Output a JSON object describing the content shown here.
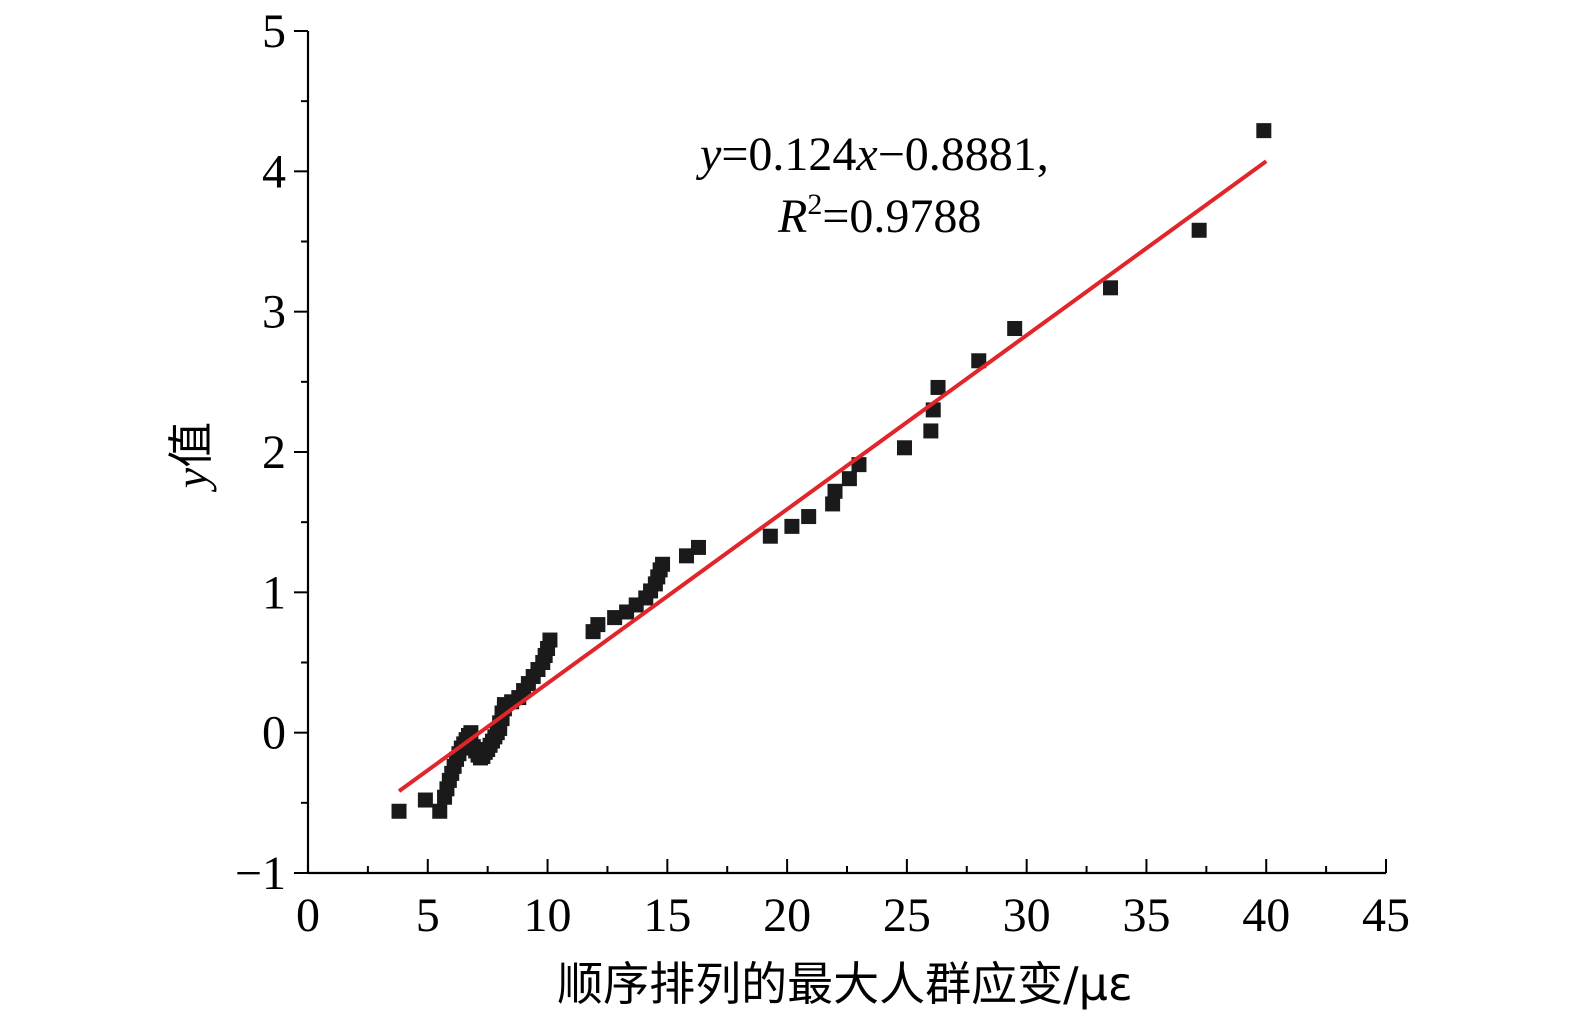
{
  "chart_data": {
    "type": "scatter",
    "xlabel": "顺序排列的最大人群应变/με",
    "ylabel_var": "y",
    "ylabel_text": "值",
    "xlim": [
      0,
      45
    ],
    "ylim": [
      -1,
      5
    ],
    "xticks": [
      0,
      5,
      10,
      15,
      20,
      25,
      30,
      35,
      40,
      45
    ],
    "xtick_labels": [
      "0",
      "5",
      "10",
      "15",
      "20",
      "25",
      "30",
      "35",
      "40",
      "45"
    ],
    "yticks": [
      -1,
      0,
      1,
      2,
      3,
      4,
      5
    ],
    "ytick_labels": [
      "−1",
      "0",
      "1",
      "2",
      "3",
      "4",
      "5"
    ],
    "marker": "square",
    "marker_color": "#1a1a1a",
    "fit_color": "#e0262b",
    "annotation": {
      "line1_var_y": "y",
      "line1_mid": "=0.124",
      "line1_var_x": "x",
      "line1_tail": "−0.8881,",
      "line2_var": "R",
      "line2_sup": "2",
      "line2_tail": "=0.9788"
    },
    "fit": {
      "slope": 0.124,
      "intercept": -0.8881,
      "x_range": [
        3.8,
        40.0
      ]
    },
    "points": [
      [
        3.8,
        -0.56
      ],
      [
        4.9,
        -0.48
      ],
      [
        5.5,
        -0.56
      ],
      [
        5.7,
        -0.46
      ],
      [
        5.8,
        -0.4
      ],
      [
        5.9,
        -0.34
      ],
      [
        6.0,
        -0.29
      ],
      [
        6.1,
        -0.24
      ],
      [
        6.2,
        -0.19
      ],
      [
        6.3,
        -0.15
      ],
      [
        6.4,
        -0.11
      ],
      [
        6.5,
        -0.08
      ],
      [
        6.6,
        -0.05
      ],
      [
        6.7,
        -0.02
      ],
      [
        6.8,
        0.0
      ],
      [
        6.9,
        -0.1
      ],
      [
        7.0,
        -0.13
      ],
      [
        7.1,
        -0.16
      ],
      [
        7.2,
        -0.18
      ],
      [
        7.3,
        -0.17
      ],
      [
        7.4,
        -0.14
      ],
      [
        7.5,
        -0.12
      ],
      [
        7.6,
        -0.09
      ],
      [
        7.7,
        -0.06
      ],
      [
        7.8,
        -0.03
      ],
      [
        7.9,
        0.0
      ],
      [
        8.0,
        0.03
      ],
      [
        8.0,
        0.07
      ],
      [
        8.1,
        0.1
      ],
      [
        8.1,
        0.14
      ],
      [
        8.2,
        0.17
      ],
      [
        8.2,
        0.2
      ],
      [
        8.5,
        0.22
      ],
      [
        8.8,
        0.25
      ],
      [
        9.0,
        0.3
      ],
      [
        9.2,
        0.35
      ],
      [
        9.4,
        0.4
      ],
      [
        9.6,
        0.45
      ],
      [
        9.8,
        0.5
      ],
      [
        9.9,
        0.55
      ],
      [
        10.0,
        0.6
      ],
      [
        10.1,
        0.66
      ],
      [
        11.9,
        0.72
      ],
      [
        12.1,
        0.77
      ],
      [
        12.8,
        0.82
      ],
      [
        13.3,
        0.86
      ],
      [
        13.7,
        0.91
      ],
      [
        14.1,
        0.96
      ],
      [
        14.3,
        1.01
      ],
      [
        14.5,
        1.06
      ],
      [
        14.6,
        1.11
      ],
      [
        14.7,
        1.16
      ],
      [
        14.8,
        1.2
      ],
      [
        15.8,
        1.26
      ],
      [
        16.3,
        1.32
      ],
      [
        19.3,
        1.4
      ],
      [
        20.2,
        1.47
      ],
      [
        20.9,
        1.54
      ],
      [
        21.9,
        1.63
      ],
      [
        22.0,
        1.72
      ],
      [
        22.6,
        1.81
      ],
      [
        23.0,
        1.91
      ],
      [
        24.9,
        2.03
      ],
      [
        26.0,
        2.15
      ],
      [
        26.1,
        2.3
      ],
      [
        26.3,
        2.46
      ],
      [
        28.0,
        2.65
      ],
      [
        29.5,
        2.88
      ],
      [
        33.5,
        3.17
      ],
      [
        37.2,
        3.58
      ],
      [
        39.9,
        4.29
      ]
    ]
  }
}
